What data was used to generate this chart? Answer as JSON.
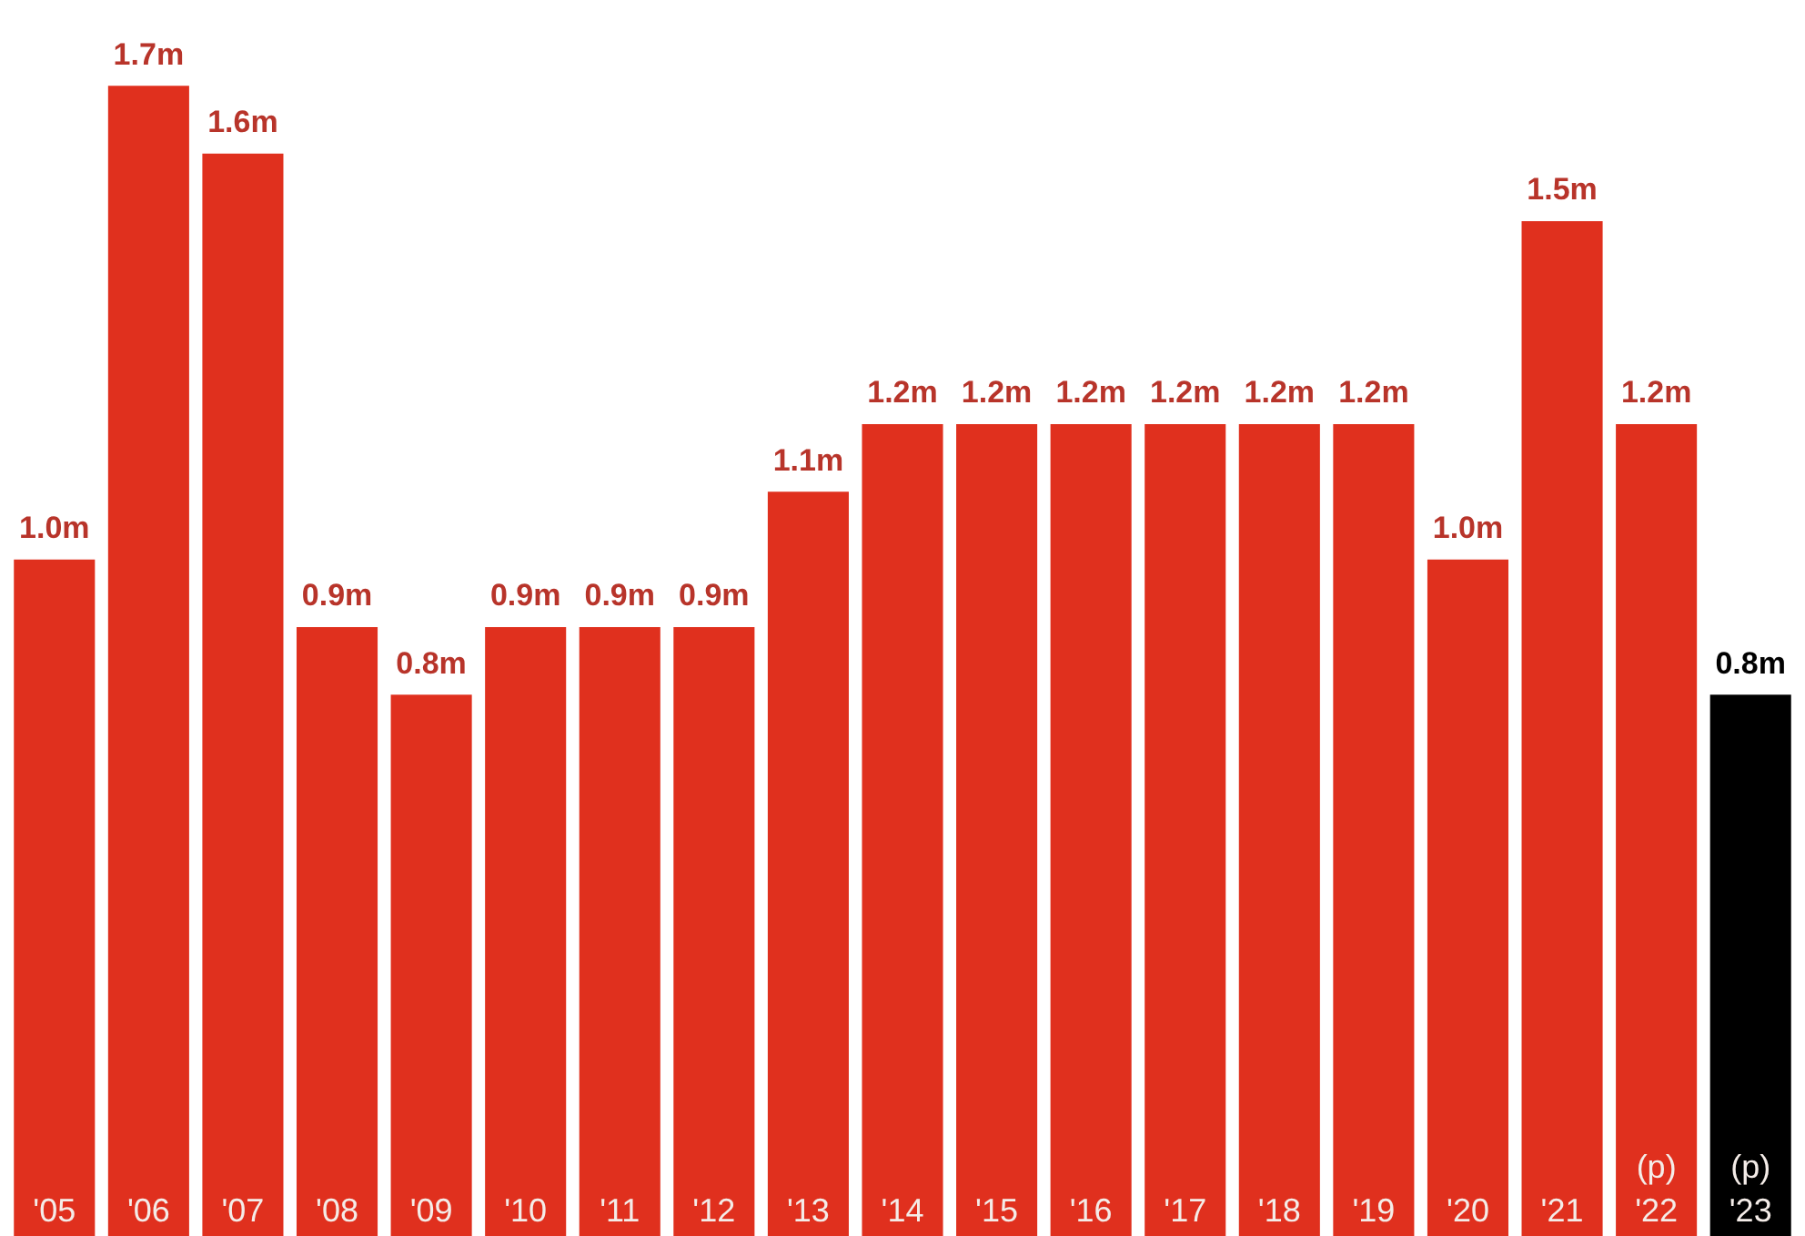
{
  "chart_data": {
    "type": "bar",
    "categories": [
      "'05",
      "'06",
      "'07",
      "'08",
      "'09",
      "'10",
      "'11",
      "'12",
      "'13",
      "'14",
      "'15",
      "'16",
      "'17",
      "'18",
      "'19",
      "'20",
      "'21",
      "(p)\n'22",
      "(p)\n'23"
    ],
    "values": [
      1.0,
      1.7,
      1.6,
      0.9,
      0.8,
      0.9,
      0.9,
      0.9,
      1.1,
      1.2,
      1.2,
      1.2,
      1.2,
      1.2,
      1.2,
      1.0,
      1.5,
      1.2,
      0.8
    ],
    "value_labels": [
      "1.0m",
      "1.7m",
      "1.6m",
      "0.9m",
      "0.8m",
      "0.9m",
      "0.9m",
      "0.9m",
      "1.1m",
      "1.2m",
      "1.2m",
      "1.2m",
      "1.2m",
      "1.2m",
      "1.2m",
      "1.0m",
      "1.5m",
      "1.2m",
      "0.8m"
    ],
    "colors": [
      "#e0301e",
      "#e0301e",
      "#e0301e",
      "#e0301e",
      "#e0301e",
      "#e0301e",
      "#e0301e",
      "#e0301e",
      "#e0301e",
      "#e0301e",
      "#e0301e",
      "#e0301e",
      "#e0301e",
      "#e0301e",
      "#e0301e",
      "#e0301e",
      "#e0301e",
      "#e0301e",
      "#000000"
    ],
    "legend": false
  }
}
